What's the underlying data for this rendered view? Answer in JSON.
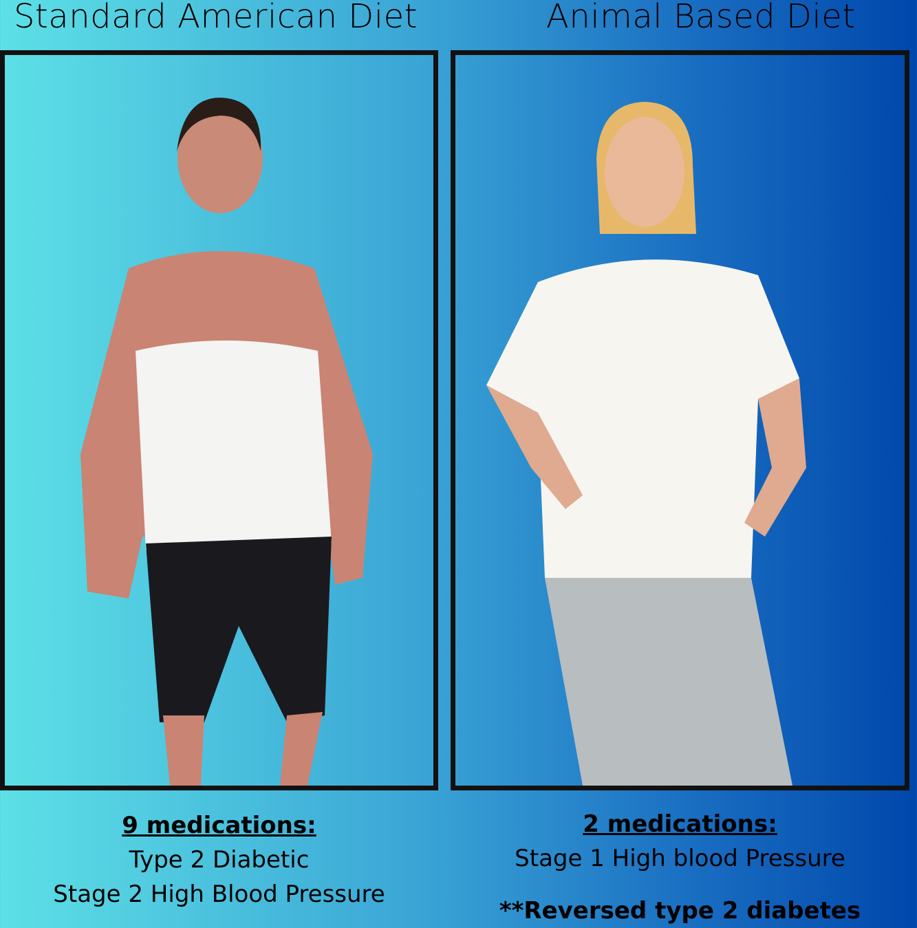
{
  "left": {
    "title": "Standard American Diet",
    "medications": "9 medications:",
    "conditions": [
      "Type 2 Diabetic",
      "Stage 2 High Blood Pressure"
    ]
  },
  "right": {
    "title": "Animal Based Diet",
    "medications": "2 medications:",
    "conditions": [
      "Stage 1 High blood Pressure"
    ],
    "footnote": "**Reversed type 2 diabetes"
  },
  "colors": {
    "gradient_start": "#5de0e6",
    "gradient_end": "#0047ab",
    "frame": "#111111"
  }
}
